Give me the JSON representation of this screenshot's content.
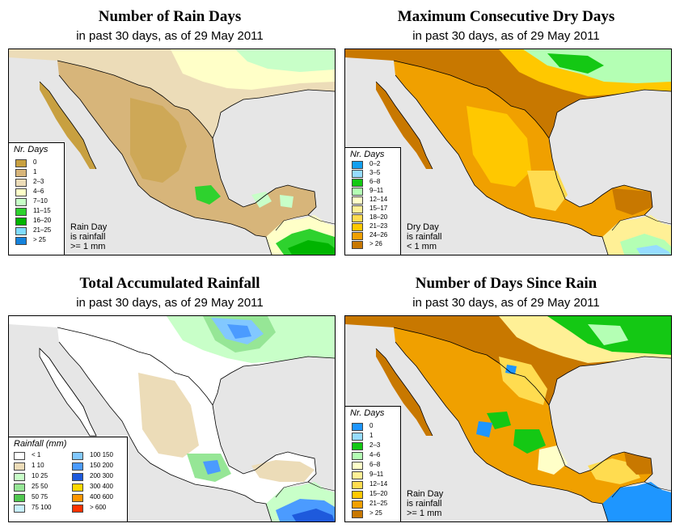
{
  "panels": [
    {
      "title": "Number of Rain Days",
      "subtitle": "in past 30 days, as of  29 May 2011",
      "legend": {
        "title": "Nr. Days",
        "items": [
          {
            "label": "0",
            "color": "#c8a040"
          },
          {
            "label": "1",
            "color": "#d7b57a"
          },
          {
            "label": "2–3",
            "color": "#ecdcb8"
          },
          {
            "label": "4–6",
            "color": "#ffffc8"
          },
          {
            "label": "7–10",
            "color": "#c8ffc8"
          },
          {
            "label": "11–15",
            "color": "#2ed22e"
          },
          {
            "label": "16–20",
            "color": "#00b400"
          },
          {
            "label": "21–25",
            "color": "#7fdcff"
          },
          {
            "label": "> 25",
            "color": "#1482dc"
          }
        ]
      },
      "note": [
        "Rain Day",
        "is rainfall",
        ">= 1 mm"
      ]
    },
    {
      "title": "Maximum Consecutive Dry Days",
      "subtitle": "in past 30 days, as of  29 May 2011",
      "legend": {
        "title": "Nr. Days",
        "items": [
          {
            "label": "0–2",
            "color": "#14a0f0"
          },
          {
            "label": "3–5",
            "color": "#96dcff"
          },
          {
            "label": "6–8",
            "color": "#14c814"
          },
          {
            "label": "9–11",
            "color": "#b4ffb4"
          },
          {
            "label": "12–14",
            "color": "#ffffc8"
          },
          {
            "label": "15–17",
            "color": "#fff096"
          },
          {
            "label": "18–20",
            "color": "#ffdc50"
          },
          {
            "label": "21–23",
            "color": "#ffc800"
          },
          {
            "label": "24–26",
            "color": "#f0a000"
          },
          {
            "label": "> 26",
            "color": "#c87800"
          }
        ]
      },
      "note": [
        "Dry Day",
        "is rainfall",
        "< 1 mm"
      ]
    },
    {
      "title": "Total Accumulated Rainfall",
      "subtitle": "in past 30 days, as of  29 May 2011",
      "legend": {
        "title": "Rainfall (mm)",
        "items": [
          {
            "label": "< 1",
            "color": "#ffffff"
          },
          {
            "label": "1     10",
            "color": "#ecdcb8"
          },
          {
            "label": "10   25",
            "color": "#c8ffc8"
          },
          {
            "label": "25   50",
            "color": "#96e696"
          },
          {
            "label": "50   75",
            "color": "#50c850"
          },
          {
            "label": "75  100",
            "color": "#c8f0ff"
          },
          {
            "label": "100  150",
            "color": "#82c8ff"
          },
          {
            "label": "150  200",
            "color": "#4b9bff"
          },
          {
            "label": "200  300",
            "color": "#1e5adc"
          },
          {
            "label": "300  400",
            "color": "#ffd700"
          },
          {
            "label": "400  600",
            "color": "#ff9600"
          },
          {
            "label": "> 600",
            "color": "#ff3200"
          }
        ]
      },
      "note": []
    },
    {
      "title": "Number of Days Since Rain",
      "subtitle": "in past 30 days, as of  29 May 2011",
      "legend": {
        "title": "Nr. Days",
        "items": [
          {
            "label": "0",
            "color": "#1e96ff"
          },
          {
            "label": "1",
            "color": "#96dcff"
          },
          {
            "label": "2–3",
            "color": "#14c814"
          },
          {
            "label": "4–6",
            "color": "#b4ffb4"
          },
          {
            "label": "6–8",
            "color": "#ffffc8"
          },
          {
            "label": "9–11",
            "color": "#fff096"
          },
          {
            "label": "12–14",
            "color": "#ffdc50"
          },
          {
            "label": "15–20",
            "color": "#ffc800"
          },
          {
            "label": "21–25",
            "color": "#f0a000"
          },
          {
            "label": "> 25",
            "color": "#c87800"
          }
        ]
      },
      "note": [
        "Rain Day",
        "is rainfall",
        ">= 1 mm"
      ]
    }
  ],
  "colors": {
    "ocean": "#e6e6e6",
    "outline": "#000000"
  }
}
